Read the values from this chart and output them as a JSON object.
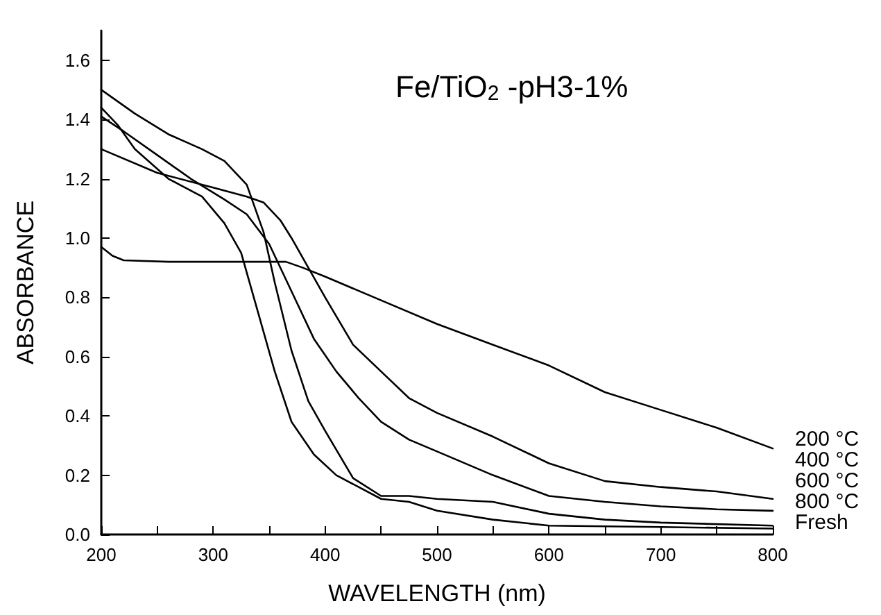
{
  "chart_data": {
    "type": "line",
    "title": "Fe/TiO$_{2}$ -pH3-1%",
    "xlabel": "WAVELENGTH (nm)",
    "ylabel": "ABSORBANCE",
    "xlim": [
      200,
      800
    ],
    "xticks": [
      200,
      {
        "value": 250,
        "label": null
      },
      300,
      {
        "value": 350,
        "label": null
      },
      400,
      {
        "value": 450,
        "label": null
      },
      500,
      {
        "value": 550,
        "label": null
      },
      600,
      {
        "value": 650,
        "label": null
      },
      700,
      {
        "value": 750,
        "label": null
      },
      800
    ],
    "ylim": [
      0,
      1.7
    ],
    "yticks": [
      {
        "value": 0,
        "label": "0.0"
      },
      {
        "value": 0.2,
        "label": "0.2"
      },
      {
        "value": 0.4,
        "label": "0.4"
      },
      {
        "value": 0.6,
        "label": "0.6"
      },
      {
        "value": 0.8,
        "label": "0.8"
      },
      {
        "value": 1.0,
        "label": "1.0"
      },
      {
        "value": 1.2,
        "label": "1.2"
      },
      {
        "value": 1.4,
        "label": "1.4"
      },
      {
        "value": 1.6,
        "label": "1.6"
      }
    ],
    "grid": false,
    "legend": false,
    "marker": "none",
    "line_style": "solid",
    "series": [
      {
        "name": "200 °C",
        "color": "#000000",
        "x": [
          200,
          210,
          220,
          260,
          300,
          340,
          365,
          380,
          400,
          450,
          500,
          550,
          600,
          650,
          700,
          750,
          800
        ],
        "values": [
          0.97,
          0.94,
          0.925,
          0.92,
          0.92,
          0.92,
          0.92,
          0.9,
          0.87,
          0.79,
          0.71,
          0.64,
          0.57,
          0.48,
          0.42,
          0.36,
          0.29
        ]
      },
      {
        "name": "400 °C",
        "color": "#000000",
        "x": [
          200,
          250,
          300,
          330,
          345,
          360,
          370,
          385,
          400,
          425,
          450,
          475,
          500,
          550,
          600,
          650,
          700,
          750,
          800
        ],
        "values": [
          1.3,
          1.22,
          1.17,
          1.14,
          1.12,
          1.06,
          1.0,
          0.9,
          0.8,
          0.64,
          0.55,
          0.46,
          0.41,
          0.33,
          0.24,
          0.18,
          0.16,
          0.145,
          0.12
        ]
      },
      {
        "name": "600 °C",
        "color": "#000000",
        "x": [
          200,
          220,
          250,
          280,
          310,
          330,
          350,
          370,
          390,
          410,
          430,
          450,
          475,
          500,
          550,
          600,
          650,
          700,
          750,
          800
        ],
        "values": [
          1.41,
          1.36,
          1.28,
          1.2,
          1.13,
          1.08,
          0.98,
          0.82,
          0.66,
          0.55,
          0.46,
          0.38,
          0.32,
          0.28,
          0.2,
          0.13,
          0.11,
          0.095,
          0.085,
          0.08
        ]
      },
      {
        "name": "800 °C",
        "color": "#000000",
        "x": [
          200,
          230,
          260,
          290,
          310,
          330,
          345,
          355,
          370,
          385,
          400,
          425,
          450,
          475,
          500,
          550,
          600,
          650,
          700,
          800
        ],
        "values": [
          1.5,
          1.42,
          1.35,
          1.3,
          1.26,
          1.18,
          1.02,
          0.85,
          0.62,
          0.45,
          0.35,
          0.19,
          0.13,
          0.13,
          0.12,
          0.11,
          0.07,
          0.05,
          0.04,
          0.03
        ]
      },
      {
        "name": "Fresh",
        "color": "#000000",
        "x": [
          200,
          215,
          230,
          260,
          290,
          310,
          325,
          340,
          355,
          370,
          390,
          410,
          430,
          450,
          475,
          500,
          550,
          600,
          700,
          800
        ],
        "values": [
          1.44,
          1.38,
          1.3,
          1.2,
          1.14,
          1.05,
          0.95,
          0.75,
          0.55,
          0.38,
          0.27,
          0.2,
          0.16,
          0.12,
          0.11,
          0.08,
          0.05,
          0.03,
          0.025,
          0.02
        ]
      }
    ]
  }
}
